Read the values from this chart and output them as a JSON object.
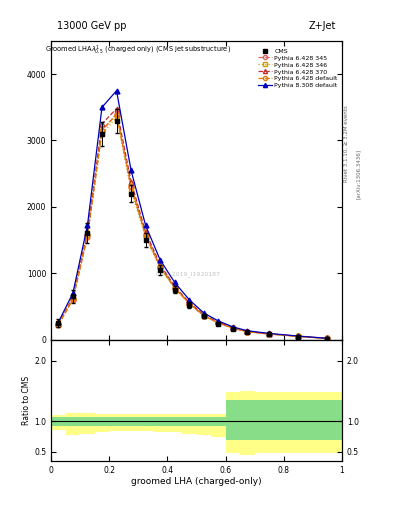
{
  "title_left": "13000 GeV pp",
  "title_right": "Z+Jet",
  "xlabel": "groomed LHA (charged-only)",
  "right_label_top": "Rivet 3.1.10, ≥ 3.2M events",
  "right_label_bot": "[arXiv:1306.3436]",
  "watermark": "CMS_2019_I1920187",
  "ratio_ylabel": "Ratio to CMS",
  "x_bins": [
    0.0,
    0.05,
    0.1,
    0.15,
    0.2,
    0.25,
    0.3,
    0.35,
    0.4,
    0.45,
    0.5,
    0.55,
    0.6,
    0.65,
    0.7,
    0.8,
    0.9,
    1.0
  ],
  "cms_values": [
    250,
    650,
    1600,
    3100,
    3300,
    2200,
    1500,
    1050,
    750,
    520,
    350,
    240,
    165,
    115,
    80,
    45,
    15
  ],
  "cms_errors": [
    60,
    100,
    150,
    180,
    180,
    130,
    110,
    80,
    55,
    40,
    30,
    20,
    15,
    12,
    8,
    6,
    4
  ],
  "py6_345_values": [
    220,
    600,
    1550,
    3150,
    3400,
    2300,
    1580,
    1100,
    780,
    545,
    360,
    250,
    170,
    118,
    82,
    47,
    16
  ],
  "py6_346_values": [
    225,
    610,
    1560,
    3100,
    3350,
    2250,
    1540,
    1080,
    770,
    540,
    355,
    248,
    168,
    117,
    81,
    46,
    15
  ],
  "py6_370_values": [
    235,
    640,
    1620,
    3250,
    3480,
    2380,
    1620,
    1130,
    800,
    560,
    375,
    262,
    178,
    124,
    86,
    49,
    17
  ],
  "py6_def_values": [
    228,
    615,
    1570,
    3150,
    3390,
    2310,
    1560,
    1090,
    775,
    542,
    358,
    250,
    170,
    118,
    82,
    47,
    16
  ],
  "py8_def_values": [
    260,
    700,
    1720,
    3500,
    3750,
    2550,
    1720,
    1200,
    860,
    600,
    400,
    280,
    190,
    132,
    92,
    52,
    18
  ],
  "ratio_green_lo": [
    0.92,
    0.92,
    0.92,
    0.93,
    0.93,
    0.93,
    0.93,
    0.93,
    0.93,
    0.93,
    0.93,
    0.93,
    0.7,
    0.7,
    0.7,
    0.7,
    0.7
  ],
  "ratio_green_hi": [
    1.08,
    1.08,
    1.08,
    1.08,
    1.08,
    1.08,
    1.08,
    1.08,
    1.08,
    1.08,
    1.08,
    1.08,
    1.35,
    1.35,
    1.35,
    1.35,
    1.35
  ],
  "ratio_yellow_lo": [
    0.85,
    0.78,
    0.8,
    0.82,
    0.84,
    0.84,
    0.84,
    0.83,
    0.82,
    0.8,
    0.78,
    0.75,
    0.48,
    0.45,
    0.48,
    0.48,
    0.48
  ],
  "ratio_yellow_hi": [
    1.1,
    1.13,
    1.13,
    1.12,
    1.12,
    1.12,
    1.12,
    1.12,
    1.12,
    1.12,
    1.12,
    1.12,
    1.48,
    1.5,
    1.48,
    1.48,
    1.48
  ],
  "colors": {
    "cms": "#000000",
    "py6_345": "#e06060",
    "py6_346": "#c8a000",
    "py6_370": "#c03030",
    "py6_def": "#e07800",
    "py8_def": "#0000bb"
  },
  "ylim": [
    0,
    4500
  ],
  "yticks": [
    0,
    1000,
    2000,
    3000,
    4000
  ],
  "ratio_ylim": [
    0.35,
    2.35
  ],
  "ratio_yticks": [
    0.5,
    1.0,
    2.0
  ]
}
